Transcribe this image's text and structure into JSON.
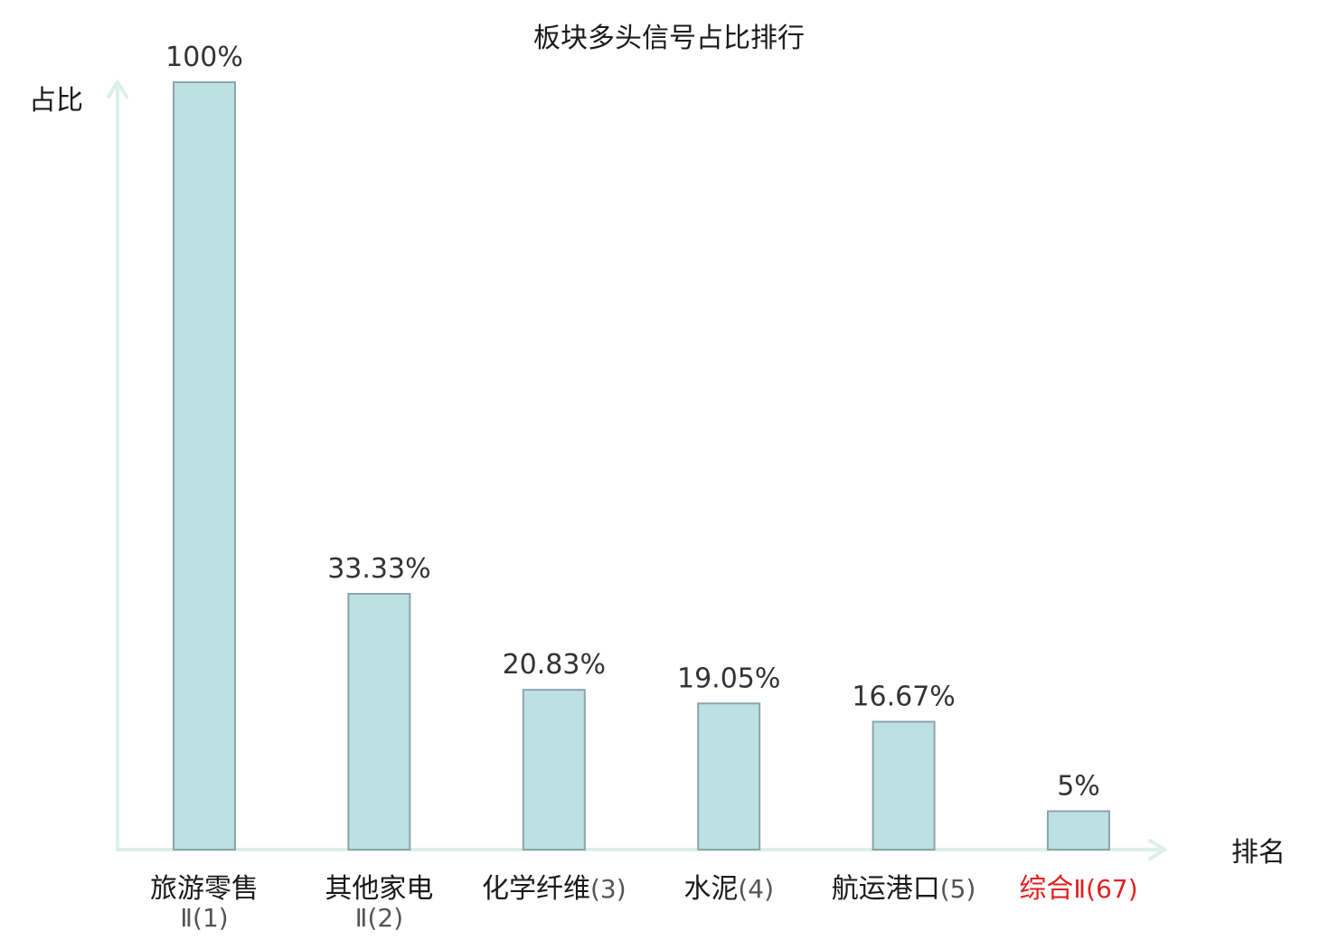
{
  "chart_data": {
    "type": "bar",
    "title": "板块多头信号占比排行",
    "ylabel": "占比",
    "xlabel": "排名",
    "ylim": [
      0,
      100
    ],
    "grid": false,
    "colors": {
      "bar_fill": "#bde0e3",
      "bar_stroke": "#8aa6a9",
      "axis": "#dcefeb",
      "highlight": "#e02020"
    },
    "categories": [
      {
        "name_lines": [
          "旅游零售"
        ],
        "rank": "Ⅱ(1)",
        "rank_wrapped": true,
        "highlight": false
      },
      {
        "name_lines": [
          "其他家电"
        ],
        "rank": "Ⅱ(2)",
        "rank_wrapped": true,
        "highlight": false
      },
      {
        "name_lines": [
          "化学纤维"
        ],
        "rank": "(3)",
        "rank_wrapped": false,
        "highlight": false
      },
      {
        "name_lines": [
          "水泥"
        ],
        "rank": "(4)",
        "rank_wrapped": false,
        "highlight": false
      },
      {
        "name_lines": [
          "航运港口"
        ],
        "rank": "(5)",
        "rank_wrapped": false,
        "highlight": false
      },
      {
        "name_lines": [
          "综合"
        ],
        "rank": "Ⅱ(67)",
        "rank_wrapped": false,
        "highlight": true
      }
    ],
    "values": [
      100,
      33.33,
      20.83,
      19.05,
      16.67,
      5
    ],
    "value_labels": [
      "100%",
      "33.33%",
      "20.83%",
      "19.05%",
      "16.67%",
      "5%"
    ]
  }
}
